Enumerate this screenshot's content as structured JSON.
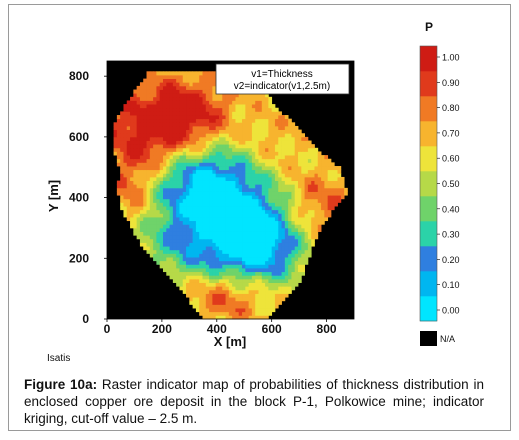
{
  "figure": {
    "caption_label": "Figure 10a:",
    "caption_text": "Raster indicator map of probabilities of thickness distribution in enclosed copper ore deposit in the block P-1, Polkowice mine; indicator kriging, cut-off value – 2.5 m.",
    "software": "Isatis"
  },
  "chart_data": {
    "type": "heatmap",
    "xlabel": "X [m]",
    "ylabel": "Y [m]",
    "xlim": [
      0,
      900
    ],
    "ylim": [
      0,
      850
    ],
    "xticks": [
      0,
      200,
      400,
      600,
      800
    ],
    "yticks": [
      0,
      200,
      400,
      600,
      800
    ],
    "legend_box": [
      "v1=Thickness",
      "v2=indicator(v1,2.5m)"
    ],
    "colorbar": {
      "title": "P",
      "ticks": [
        "1.00",
        "0.90",
        "0.80",
        "0.70",
        "0.60",
        "0.50",
        "0.40",
        "0.30",
        "0.20",
        "0.10",
        "0.00"
      ],
      "range": [
        0,
        1
      ],
      "na_label": "N/A",
      "na_color": "#000000",
      "colors": [
        "#00e5ff",
        "#00b6f0",
        "#2f7fe0",
        "#2bd3a8",
        "#6fd36a",
        "#b6d948",
        "#eee43a",
        "#f7b42e",
        "#f07a24",
        "#e03a1c",
        "#cf1c14"
      ]
    },
    "grid": false,
    "domain": {
      "y_min": 0,
      "y_max": 810,
      "x_bounds_by_y": [
        [
          0,
          355,
          575
        ],
        [
          60,
          300,
          640
        ],
        [
          130,
          240,
          700
        ],
        [
          200,
          160,
          730
        ],
        [
          280,
          100,
          760
        ],
        [
          360,
          55,
          820
        ],
        [
          420,
          40,
          870
        ],
        [
          500,
          45,
          840
        ],
        [
          560,
          20,
          760
        ],
        [
          640,
          25,
          680
        ],
        [
          700,
          60,
          610
        ],
        [
          760,
          110,
          560
        ],
        [
          810,
          150,
          520
        ]
      ]
    },
    "probability_field": {
      "base": 0.6,
      "blobs": [
        {
          "x": 440,
          "y": 310,
          "sx": 190,
          "sy": 150,
          "delta": -0.62
        },
        {
          "x": 560,
          "y": 250,
          "sx": 80,
          "sy": 80,
          "delta": -0.3
        },
        {
          "x": 330,
          "y": 470,
          "sx": 110,
          "sy": 70,
          "delta": -0.3
        },
        {
          "x": 160,
          "y": 600,
          "sx": 140,
          "sy": 110,
          "delta": 0.35
        },
        {
          "x": 300,
          "y": 690,
          "sx": 120,
          "sy": 80,
          "delta": 0.28
        },
        {
          "x": 760,
          "y": 380,
          "sx": 110,
          "sy": 90,
          "delta": 0.3
        },
        {
          "x": 430,
          "y": 80,
          "sx": 130,
          "sy": 70,
          "delta": 0.35
        },
        {
          "x": 600,
          "y": 560,
          "sx": 80,
          "sy": 80,
          "delta": 0.15
        },
        {
          "x": 90,
          "y": 400,
          "sx": 60,
          "sy": 80,
          "delta": 0.2
        }
      ]
    }
  }
}
